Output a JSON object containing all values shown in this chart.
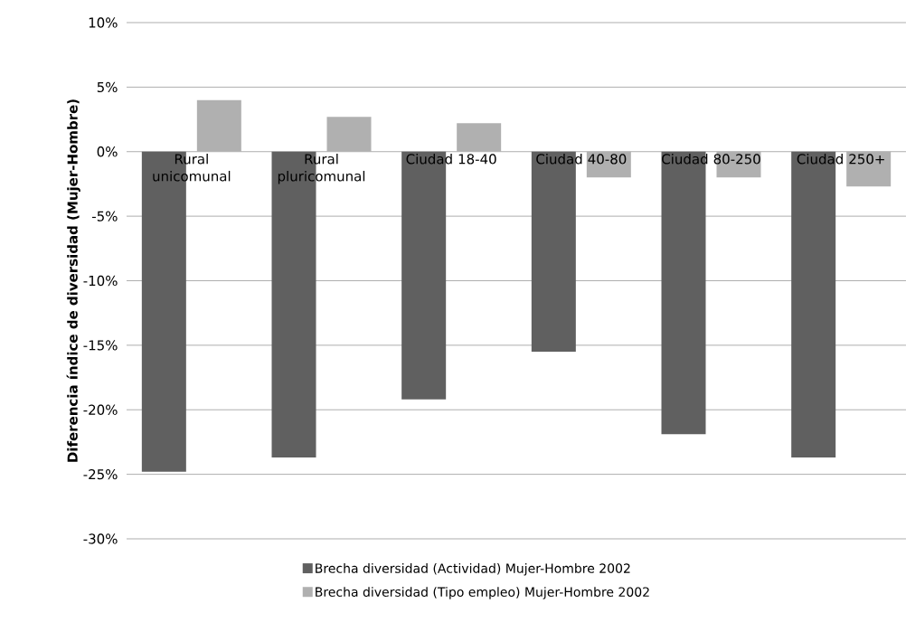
{
  "chart_data": {
    "type": "bar",
    "ylabel": "Diferencia índice de diversidad (Mujer-Hombre)",
    "categories": [
      "Rural unicomunal",
      "Rural pluricomunal",
      "Ciudad 18-40",
      "Ciudad 40-80",
      "Ciudad 80-250",
      "Ciudad 250+"
    ],
    "series": [
      {
        "name": "Brecha diversidad (Actividad) Mujer-Hombre 2002",
        "color": "#606060",
        "values": [
          -24.8,
          -23.7,
          -19.2,
          -15.5,
          -21.9,
          -23.7
        ]
      },
      {
        "name": "Brecha diversidad (Tipo empleo) Mujer-Hombre 2002",
        "color": "#b0b0b0",
        "values": [
          4.0,
          2.7,
          2.2,
          -2.0,
          -2.0,
          -2.7
        ]
      }
    ],
    "ylim": [
      -30,
      10
    ],
    "yticks": [
      {
        "value": -30,
        "label": "-30%"
      },
      {
        "value": -25,
        "label": "-25%"
      },
      {
        "value": -20,
        "label": "-20%"
      },
      {
        "value": -15,
        "label": "-15%"
      },
      {
        "value": -10,
        "label": "-10%"
      },
      {
        "value": -5,
        "label": "-5%"
      },
      {
        "value": 0,
        "label": "0%"
      },
      {
        "value": 5,
        "label": "5%"
      },
      {
        "value": 10,
        "label": "10%"
      }
    ],
    "grid": "y",
    "legend": "bottom"
  }
}
